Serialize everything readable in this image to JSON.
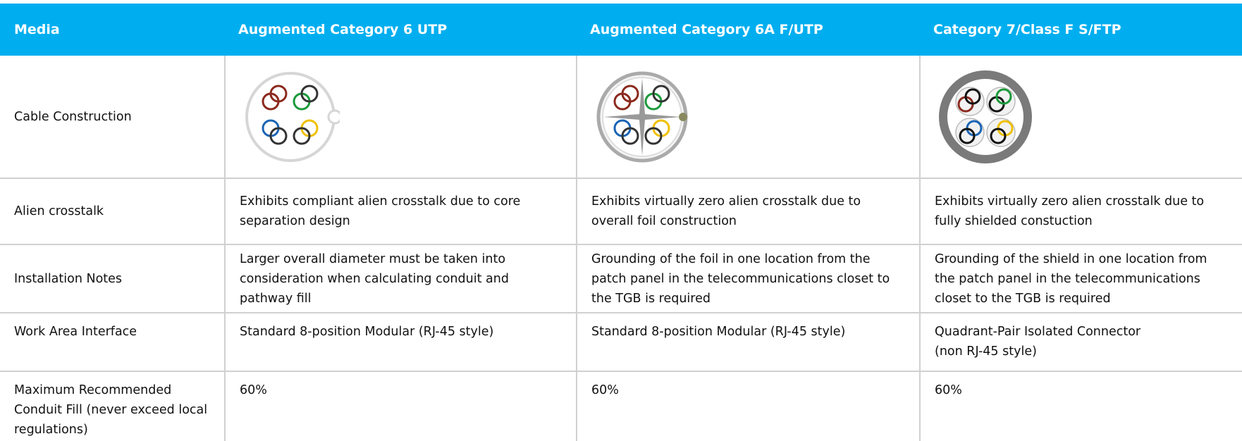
{
  "table": {
    "header": [
      "Media",
      "Augmented Category 6 UTP",
      "Augmented Category 6A F/UTP",
      "Category 7/Class F S/FTP"
    ],
    "rows": [
      {
        "label": "Cable Construction"
      },
      {
        "label": "Alien crosstalk",
        "cells": [
          "Exhibits compliant alien crosstalk due to core separation design",
          "Exhibits virtually zero alien crosstalk due to overall foil construction",
          "Exhibits virtually zero alien crosstalk due to fully shielded constuction"
        ]
      },
      {
        "label": "Installation Notes",
        "cells": [
          "Larger overall diameter must be taken into consideration when calculating conduit and pathway fill",
          "Grounding of the foil in one location from the patch panel in the telecommunications closet to the TGB is required",
          "Grounding of the shield in one location from the patch panel in the telecommunications closet to the TGB is required"
        ]
      },
      {
        "label": "Work Area Interface",
        "cells": [
          "Standard 8-position Modular (RJ-45 style)",
          "Standard 8-position Modular (RJ-45 style)",
          "Quadrant-Pair Isolated Connector\n (non RJ-45 style)"
        ]
      },
      {
        "label": "Maximum Recommended Conduit Fill (never exceed local regulations)",
        "cells": [
          "60%",
          "60%",
          "60%"
        ]
      }
    ]
  }
}
